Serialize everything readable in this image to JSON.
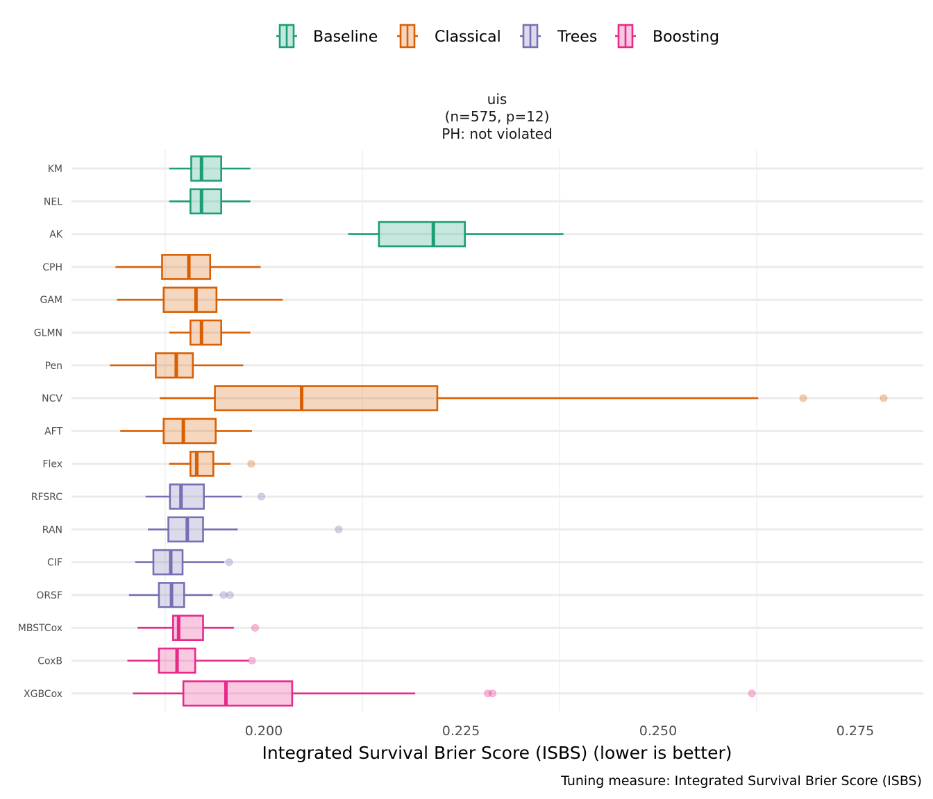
{
  "chart_data": {
    "type": "boxplot",
    "orientation": "horizontal",
    "facet_title": [
      "uis",
      "(n=575, p=12)",
      "PH: not violated"
    ],
    "xlabel": "Integrated Survival Brier Score (ISBS) (lower is better)",
    "ylabel": "",
    "caption": "Tuning measure: Integrated Survival Brier Score (ISBS)",
    "x_ticks": [
      0.2,
      0.225,
      0.25,
      0.275
    ],
    "x_tick_labels": [
      "0.200",
      "0.225",
      "0.250",
      "0.275"
    ],
    "x_gridlines": [
      0.1875,
      0.2125,
      0.2375,
      0.2625
    ],
    "xlim": [
      0.177,
      0.285
    ],
    "grid": true,
    "legend": {
      "position": "top",
      "entries": [
        {
          "name": "Baseline",
          "color": "#1B9E77",
          "fill": "#C5E7DC"
        },
        {
          "name": "Classical",
          "color": "#D95F02",
          "fill": "#F4D6BF"
        },
        {
          "name": "Trees",
          "color": "#7570B3",
          "fill": "#DAD9EB"
        },
        {
          "name": "Boosting",
          "color": "#E7298A",
          "fill": "#F8C8E0"
        }
      ]
    },
    "series": [
      {
        "name": "KM",
        "group": "Baseline",
        "min": 0.188,
        "q1": 0.1908,
        "median": 0.1921,
        "q3": 0.1946,
        "max": 0.1983,
        "outliers": []
      },
      {
        "name": "NEL",
        "group": "Baseline",
        "min": 0.188,
        "q1": 0.1907,
        "median": 0.1921,
        "q3": 0.1946,
        "max": 0.1983,
        "outliers": []
      },
      {
        "name": "AK",
        "group": "Baseline",
        "min": 0.2107,
        "q1": 0.2146,
        "median": 0.2215,
        "q3": 0.2255,
        "max": 0.238,
        "outliers": []
      },
      {
        "name": "CPH",
        "group": "Classical",
        "min": 0.1812,
        "q1": 0.1871,
        "median": 0.1905,
        "q3": 0.1932,
        "max": 0.1996,
        "outliers": []
      },
      {
        "name": "GAM",
        "group": "Classical",
        "min": 0.1814,
        "q1": 0.1873,
        "median": 0.1914,
        "q3": 0.194,
        "max": 0.2024,
        "outliers": []
      },
      {
        "name": "GLMN",
        "group": "Classical",
        "min": 0.188,
        "q1": 0.1907,
        "median": 0.1921,
        "q3": 0.1946,
        "max": 0.1983,
        "outliers": []
      },
      {
        "name": "Pen",
        "group": "Classical",
        "min": 0.1805,
        "q1": 0.1863,
        "median": 0.1889,
        "q3": 0.191,
        "max": 0.1974,
        "outliers": []
      },
      {
        "name": "NCV",
        "group": "Classical",
        "min": 0.1868,
        "q1": 0.1938,
        "median": 0.2048,
        "q3": 0.222,
        "max": 0.2627,
        "outliers": [
          0.2684,
          0.2786
        ]
      },
      {
        "name": "AFT",
        "group": "Classical",
        "min": 0.1818,
        "q1": 0.1873,
        "median": 0.1898,
        "q3": 0.1939,
        "max": 0.1985,
        "outliers": []
      },
      {
        "name": "Flex",
        "group": "Classical",
        "min": 0.188,
        "q1": 0.1907,
        "median": 0.1915,
        "q3": 0.1936,
        "max": 0.1958,
        "outliers": [
          0.1984
        ]
      },
      {
        "name": "RFSRC",
        "group": "Trees",
        "min": 0.185,
        "q1": 0.1881,
        "median": 0.1895,
        "q3": 0.1924,
        "max": 0.1972,
        "outliers": [
          0.1997
        ]
      },
      {
        "name": "RAN",
        "group": "Trees",
        "min": 0.1853,
        "q1": 0.1879,
        "median": 0.1903,
        "q3": 0.1923,
        "max": 0.1967,
        "outliers": [
          0.2095
        ]
      },
      {
        "name": "CIF",
        "group": "Trees",
        "min": 0.1837,
        "q1": 0.186,
        "median": 0.1882,
        "q3": 0.1897,
        "max": 0.195,
        "outliers": [
          0.1956
        ]
      },
      {
        "name": "ORSF",
        "group": "Trees",
        "min": 0.1829,
        "q1": 0.1867,
        "median": 0.1883,
        "q3": 0.1899,
        "max": 0.1935,
        "outliers": [
          0.1949,
          0.1957
        ]
      },
      {
        "name": "MBSTCox",
        "group": "Boosting",
        "min": 0.184,
        "q1": 0.1885,
        "median": 0.1892,
        "q3": 0.1923,
        "max": 0.1962,
        "outliers": [
          0.1989
        ]
      },
      {
        "name": "CoxB",
        "group": "Boosting",
        "min": 0.1827,
        "q1": 0.1867,
        "median": 0.189,
        "q3": 0.1913,
        "max": 0.1981,
        "outliers": [
          0.1985
        ]
      },
      {
        "name": "XGBCox",
        "group": "Boosting",
        "min": 0.1834,
        "q1": 0.1898,
        "median": 0.1952,
        "q3": 0.2036,
        "max": 0.2192,
        "outliers": [
          0.2284,
          0.229,
          0.2619
        ]
      }
    ]
  }
}
